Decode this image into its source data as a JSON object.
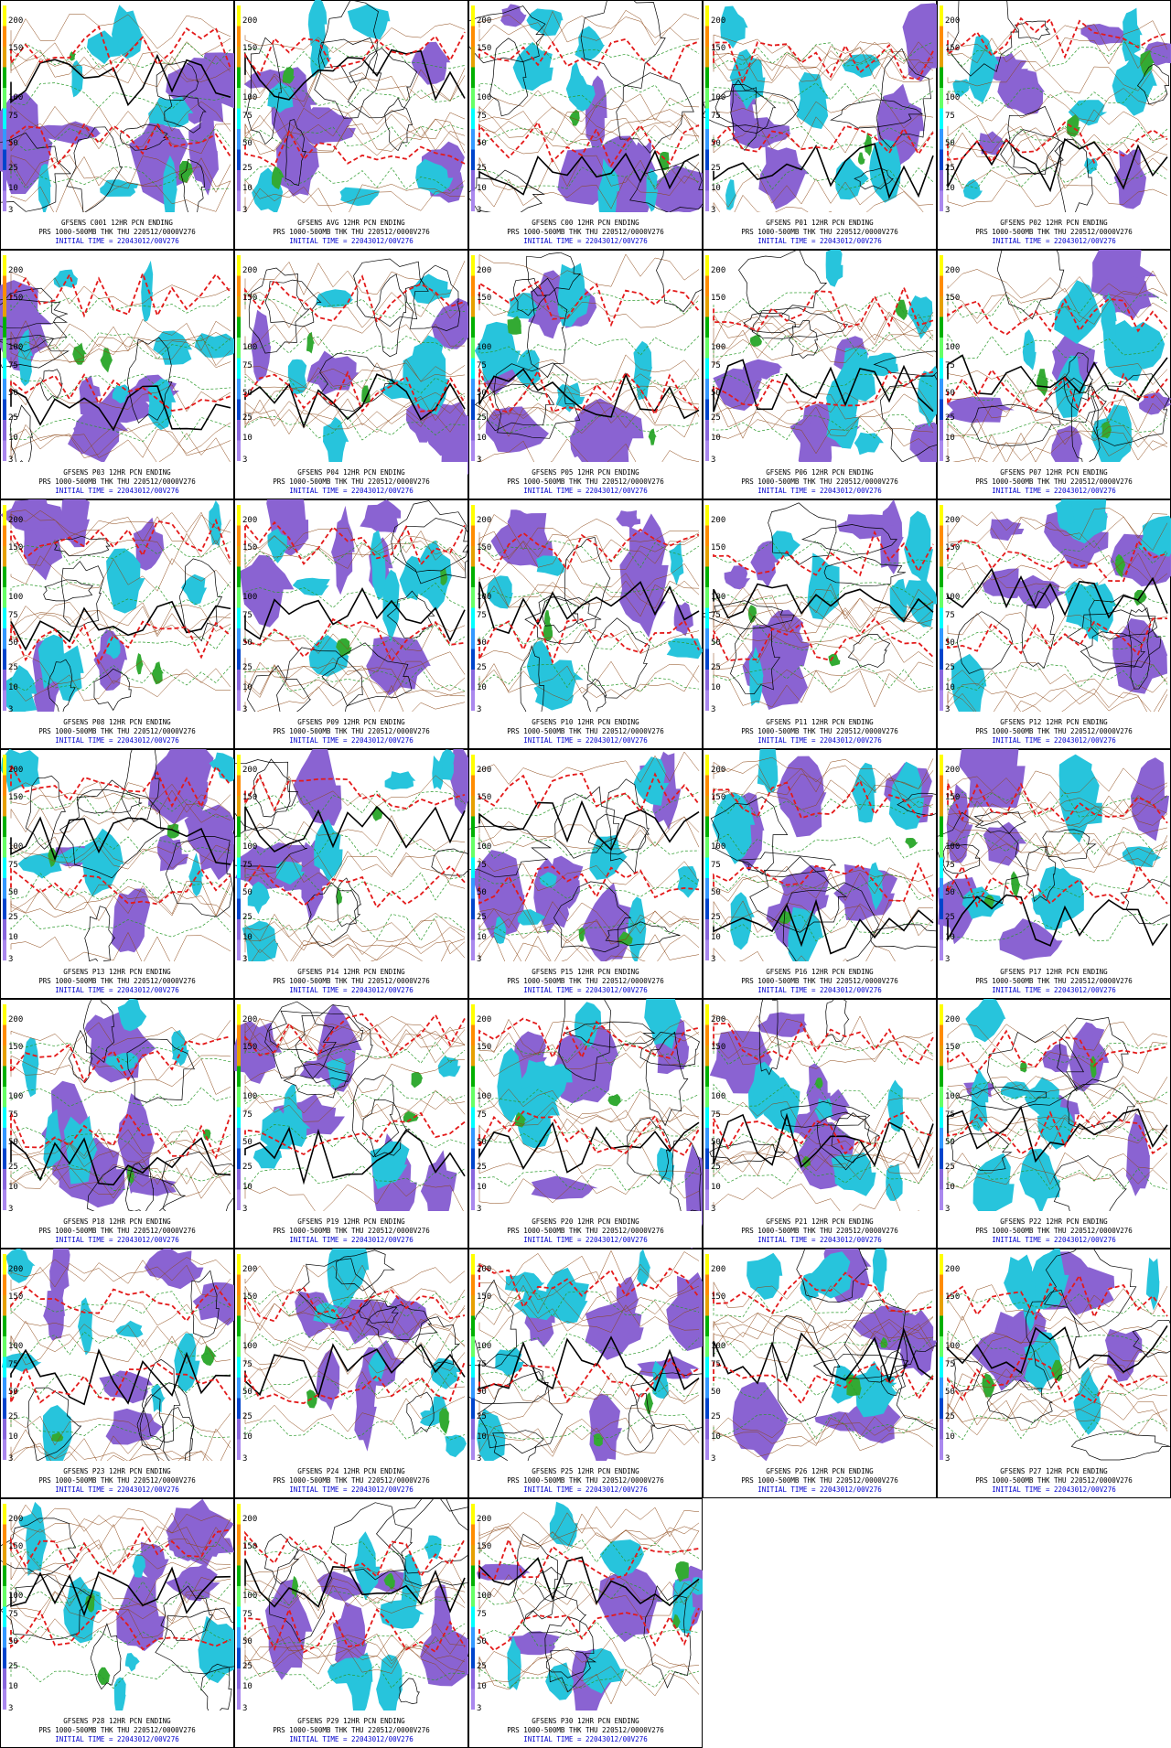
{
  "colorbar_labels": [
    "200",
    "150",
    "100",
    "75",
    "50",
    "25",
    "10",
    "3"
  ],
  "panels": [
    {
      "title": "GFSENS C001 12HR PCN ENDING",
      "subtitle": "PRS 1000-500MB THK THU 220512/0000V276",
      "initial_time": "INITIAL TIME = 22043012/00V276"
    },
    {
      "title": "GFSENS AVG 12HR PCN ENDING",
      "subtitle": "PRS 1000-500MB THK THU 220512/0000V276",
      "initial_time": "INITIAL TIME = 22043012/00V276"
    },
    {
      "title": "GFSENS C00 12HR PCN ENDING",
      "subtitle": "PRS 1000-500MB THK THU 220512/0000V276",
      "initial_time": "INITIAL TIME = 22043012/00V276"
    },
    {
      "title": "GFSENS P01 12HR PCN ENDING",
      "subtitle": "PRS 1000-500MB THK THU 220512/0000V276",
      "initial_time": "INITIAL TIME = 22043012/00V276"
    },
    {
      "title": "GFSENS P02 12HR PCN ENDING",
      "subtitle": "PRS 1000-500MB THK THU 220512/0000V276",
      "initial_time": "INITIAL TIME = 22043012/00V276"
    },
    {
      "title": "GFSENS P03 12HR PCN ENDING",
      "subtitle": "PRS 1000-500MB THK THU 220512/0000V276",
      "initial_time": "INITIAL TIME = 22043012/00V276"
    },
    {
      "title": "GFSENS P04 12HR PCN ENDING",
      "subtitle": "PRS 1000-500MB THK THU 220512/0000V276",
      "initial_time": "INITIAL TIME = 22043012/00V276"
    },
    {
      "title": "GFSENS P05 12HR PCN ENDING",
      "subtitle": "PRS 1000-500MB THK THU 220512/0000V276",
      "initial_time": "INITIAL TIME = 22043012/00V276"
    },
    {
      "title": "GFSENS P06 12HR PCN ENDING",
      "subtitle": "PRS 1000-500MB THK THU 220512/0000V276",
      "initial_time": "INITIAL TIME = 22043012/00V276"
    },
    {
      "title": "GFSENS P07 12HR PCN ENDING",
      "subtitle": "PRS 1000-500MB THK THU 220512/0000V276",
      "initial_time": "INITIAL TIME = 22043012/00V276"
    },
    {
      "title": "GFSENS P08 12HR PCN ENDING",
      "subtitle": "PRS 1000-500MB THK THU 220512/0000V276",
      "initial_time": "INITIAL TIME = 22043012/00V276"
    },
    {
      "title": "GFSENS P09 12HR PCN ENDING",
      "subtitle": "PRS 1000-500MB THK THU 220512/0000V276",
      "initial_time": "INITIAL TIME = 22043012/00V276"
    },
    {
      "title": "GFSENS P10 12HR PCN ENDING",
      "subtitle": "PRS 1000-500MB THK THU 220512/0000V276",
      "initial_time": "INITIAL TIME = 22043012/00V276"
    },
    {
      "title": "GFSENS P11 12HR PCN ENDING",
      "subtitle": "PRS 1000-500MB THK THU 220512/0000V276",
      "initial_time": "INITIAL TIME = 22043012/00V276"
    },
    {
      "title": "GFSENS P12 12HR PCN ENDING",
      "subtitle": "PRS 1000-500MB THK THU 220512/0000V276",
      "initial_time": "INITIAL TIME = 22043012/00V276"
    },
    {
      "title": "GFSENS P13 12HR PCN ENDING",
      "subtitle": "PRS 1000-500MB THK THU 220512/0000V276",
      "initial_time": "INITIAL TIME = 22043012/00V276"
    },
    {
      "title": "GFSENS P14 12HR PCN ENDING",
      "subtitle": "PRS 1000-500MB THK THU 220512/0000V276",
      "initial_time": "INITIAL TIME = 22043012/00V276"
    },
    {
      "title": "GFSENS P15 12HR PCN ENDING",
      "subtitle": "PRS 1000-500MB THK THU 220512/0000V276",
      "initial_time": "INITIAL TIME = 22043012/00V276"
    },
    {
      "title": "GFSENS P16 12HR PCN ENDING",
      "subtitle": "PRS 1000-500MB THK THU 220512/0000V276",
      "initial_time": "INITIAL TIME = 22043012/00V276"
    },
    {
      "title": "GFSENS P17 12HR PCN ENDING",
      "subtitle": "PRS 1000-500MB THK THU 220512/0000V276",
      "initial_time": "INITIAL TIME = 22043012/00V276"
    },
    {
      "title": "GFSENS P18 12HR PCN ENDING",
      "subtitle": "PRS 1000-500MB THK THU 220512/0000V276",
      "initial_time": "INITIAL TIME = 22043012/00V276"
    },
    {
      "title": "GFSENS P19 12HR PCN ENDING",
      "subtitle": "PRS 1000-500MB THK THU 220512/0000V276",
      "initial_time": "INITIAL TIME = 22043012/00V276"
    },
    {
      "title": "GFSENS P20 12HR PCN ENDING",
      "subtitle": "PRS 1000-500MB THK THU 220512/0000V276",
      "initial_time": "INITIAL TIME = 22043012/00V276"
    },
    {
      "title": "GFSENS P21 12HR PCN ENDING",
      "subtitle": "PRS 1000-500MB THK THU 220512/0000V276",
      "initial_time": "INITIAL TIME = 22043012/00V276"
    },
    {
      "title": "GFSENS P22 12HR PCN ENDING",
      "subtitle": "PRS 1000-500MB THK THU 220512/0000V276",
      "initial_time": "INITIAL TIME = 22043012/00V276"
    },
    {
      "title": "GFSENS P23 12HR PCN ENDING",
      "subtitle": "PRS 1000-500MB THK THU 220512/0000V276",
      "initial_time": "INITIAL TIME = 22043012/00V276"
    },
    {
      "title": "GFSENS P24 12HR PCN ENDING",
      "subtitle": "PRS 1000-500MB THK THU 220512/0000V276",
      "initial_time": "INITIAL TIME = 22043012/00V276"
    },
    {
      "title": "GFSENS P25 12HR PCN ENDING",
      "subtitle": "PRS 1000-500MB THK THU 220512/0000V276",
      "initial_time": "INITIAL TIME = 22043012/00V276"
    },
    {
      "title": "GFSENS P26 12HR PCN ENDING",
      "subtitle": "PRS 1000-500MB THK THU 220512/0000V276",
      "initial_time": "INITIAL TIME = 22043012/00V276"
    },
    {
      "title": "GFSENS P27 12HR PCN ENDING",
      "subtitle": "PRS 1000-500MB THK THU 220512/0000V276",
      "initial_time": "INITIAL TIME = 22043012/00V276"
    },
    {
      "title": "GFSENS P28 12HR PCN ENDING",
      "subtitle": "PRS 1000-500MB THK THU 220512/0000V276",
      "initial_time": "INITIAL TIME = 22043012/00V276"
    },
    {
      "title": "GFSENS P29 12HR PCN ENDING",
      "subtitle": "PRS 1000-500MB THK THU 220512/0000V276",
      "initial_time": "INITIAL TIME = 22043012/00V276"
    },
    {
      "title": "GFSENS P30 12HR PCN ENDING",
      "subtitle": "PRS 1000-500MB THK THU 220512/0000V276",
      "initial_time": "INITIAL TIME = 22043012/00V276"
    }
  ]
}
